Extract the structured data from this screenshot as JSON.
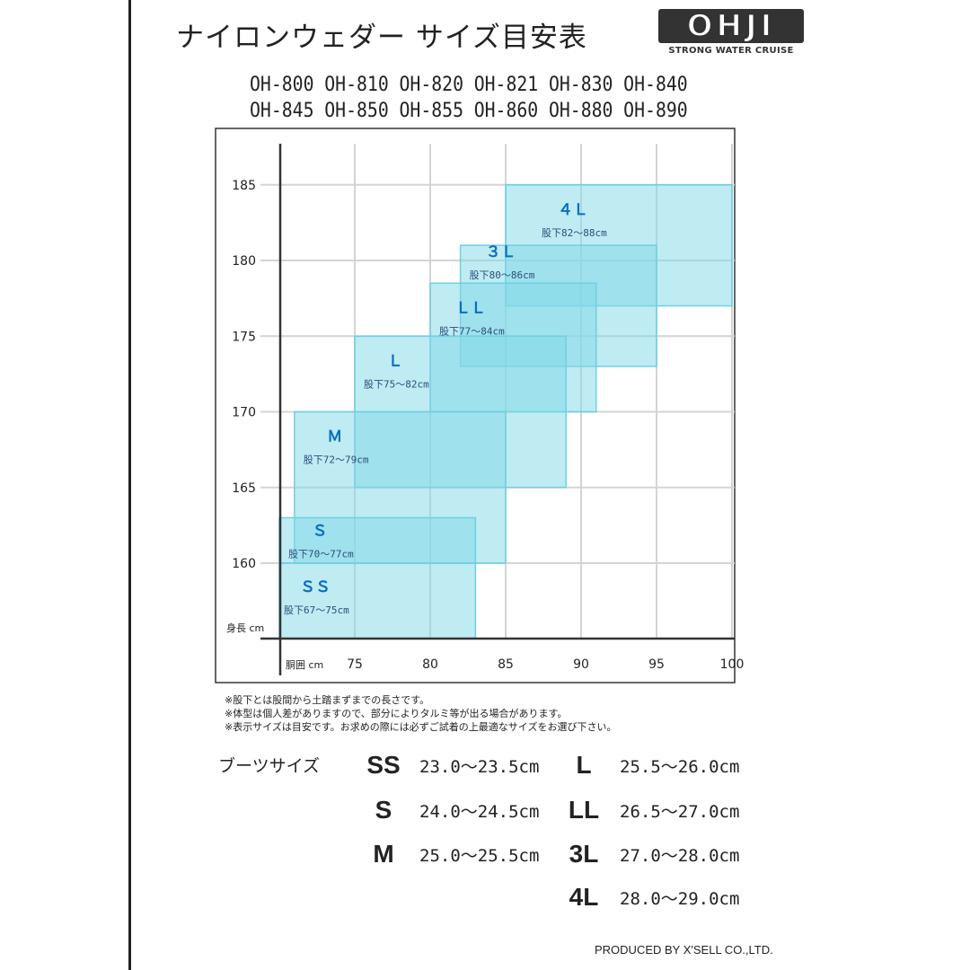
{
  "header": {
    "title": "ナイロンウェダー サイズ目安表",
    "logo_text": "OHJI",
    "logo_tagline": "STRONG WATER CRUISE"
  },
  "models": [
    [
      "OH-800",
      "OH-810",
      "OH-820",
      "OH-821",
      "OH-830",
      "OH-840"
    ],
    [
      "OH-845",
      "OH-850",
      "OH-855",
      "OH-860",
      "OH-880",
      "OH-890"
    ]
  ],
  "chart_data": {
    "type": "rect-range",
    "xlabel": "胴囲 cm",
    "ylabel": "身長 cm",
    "xlim": [
      70,
      100
    ],
    "ylim": [
      155,
      188
    ],
    "xticks": [
      75,
      80,
      85,
      90,
      95,
      100
    ],
    "yticks": [
      160,
      165,
      170,
      175,
      180,
      185
    ],
    "grid": true,
    "color": "#7fd8e8",
    "series": [
      {
        "name": "ＳＳ",
        "inseam": "股下67～75cm",
        "waist": [
          70,
          83
        ],
        "height": [
          155,
          160
        ]
      },
      {
        "name": "Ｓ",
        "inseam": "股下70～77cm",
        "waist": [
          70,
          83
        ],
        "height": [
          160,
          163
        ]
      },
      {
        "name": "Ｍ",
        "inseam": "股下72～79cm",
        "waist": [
          71,
          85
        ],
        "height": [
          160,
          170
        ]
      },
      {
        "name": "Ｌ",
        "inseam": "股下75～82cm",
        "waist": [
          75,
          89
        ],
        "height": [
          165,
          175
        ]
      },
      {
        "name": "ＬＬ",
        "inseam": "股下77～84cm",
        "waist": [
          80,
          91
        ],
        "height": [
          170,
          178.5
        ]
      },
      {
        "name": "３Ｌ",
        "inseam": "股下80～86cm",
        "waist": [
          82,
          95
        ],
        "height": [
          173,
          181
        ]
      },
      {
        "name": "４Ｌ",
        "inseam": "股下82～88cm",
        "waist": [
          85,
          100
        ],
        "height": [
          177,
          185
        ]
      }
    ]
  },
  "notes": [
    "※股下とは股間から土踏まずまでの長さです。",
    "※体型は個人差がありますので、部分によりタルミ等が出る場合があります。",
    "※表示サイズは目安です。お求めの際には必ずご試着の上最適なサイズをお選び下さい。"
  ],
  "boots": {
    "label": "ブーツサイズ",
    "items": [
      {
        "size": "SS",
        "range": "23.0～23.5cm"
      },
      {
        "size": "S",
        "range": "24.0～24.5cm"
      },
      {
        "size": "M",
        "range": "25.0～25.5cm"
      },
      {
        "size": "L",
        "range": "25.5～26.0cm"
      },
      {
        "size": "LL",
        "range": "26.5～27.0cm"
      },
      {
        "size": "3L",
        "range": "27.0～28.0cm"
      },
      {
        "size": "4L",
        "range": "28.0～29.0cm"
      }
    ]
  },
  "footer": "PRODUCED BY X'SELL CO.,LTD."
}
